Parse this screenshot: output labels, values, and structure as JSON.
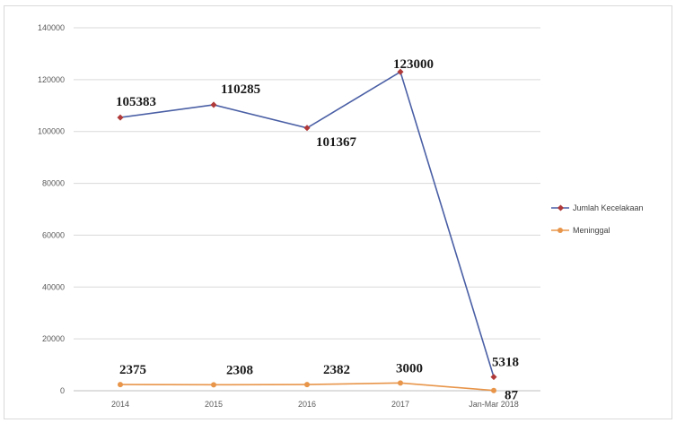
{
  "chart_data": {
    "type": "line",
    "categories": [
      "2014",
      "2015",
      "2016",
      "2017",
      "Jan-Mar 2018"
    ],
    "series": [
      {
        "name": "Jumlah Kecelakaan",
        "values": [
          105383,
          110285,
          101367,
          123000,
          5318
        ],
        "labels": [
          "105383",
          "110285",
          "101367",
          "123000",
          "5318"
        ],
        "color": "#4a5fa5",
        "marker_color": "#b03a3a"
      },
      {
        "name": "Meninggal",
        "values": [
          2375,
          2308,
          2382,
          3000,
          87
        ],
        "labels": [
          "2375",
          "2308",
          "2382",
          "3000",
          "87"
        ],
        "color": "#e8954a",
        "marker_color": "#e8954a"
      }
    ],
    "yticks": [
      "0",
      "20000",
      "40000",
      "60000",
      "80000",
      "100000",
      "120000",
      "140000"
    ],
    "ylim": [
      0,
      140000
    ],
    "grid": true,
    "legend": "right"
  }
}
